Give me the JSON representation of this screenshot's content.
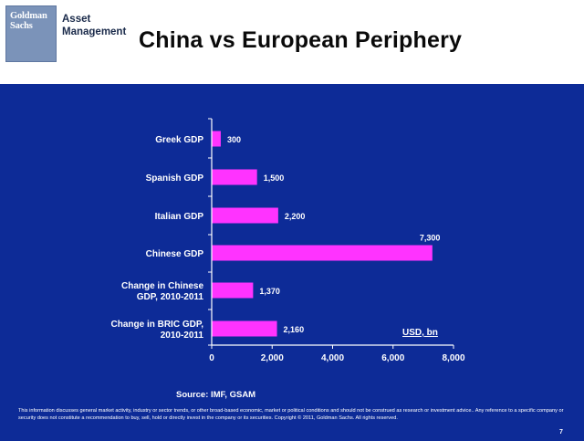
{
  "header": {
    "logo": {
      "line1": "Goldman",
      "line2": "Sachs"
    },
    "division": {
      "line1": "Asset",
      "line2": "Management"
    },
    "title": "China vs European Periphery"
  },
  "footer": {
    "source": "Source: IMF, GSAM",
    "disclaimer": "This information discusses general market activity, industry or sector trends, or other broad-based economic, market or political conditions and should not be construed as research or investment advice.. Any reference to a specific company or security does not constitute a recommendation to buy, sell, hold or directly invest in the company or its securities. Copyright © 2011, Goldman Sachs. All rights reserved.",
    "page_number": "7"
  },
  "colors": {
    "background": "#0d2b97",
    "bar": "#ff33ff",
    "text": "#ffffff"
  },
  "chart_data": {
    "type": "bar",
    "orientation": "horizontal",
    "categories": [
      [
        "Greek GDP"
      ],
      [
        "Spanish GDP"
      ],
      [
        "Italian  GDP"
      ],
      [
        "Chinese GDP"
      ],
      [
        "Change in Chinese",
        "GDP, 2010-2011"
      ],
      [
        "Change in BRIC GDP,",
        "2010-2011"
      ]
    ],
    "values": [
      300,
      1500,
      2200,
      7300,
      1370,
      2160
    ],
    "value_labels": [
      "300",
      "1,500",
      "2,200",
      "7,300",
      "1,370",
      "2,160"
    ],
    "xlim": [
      0,
      8000
    ],
    "xticks": [
      0,
      2000,
      4000,
      6000,
      8000
    ],
    "xtick_labels": [
      "0",
      "2,000",
      "4,000",
      "6,000",
      "8,000"
    ],
    "unit_label": "USD, bn",
    "grid": false
  }
}
